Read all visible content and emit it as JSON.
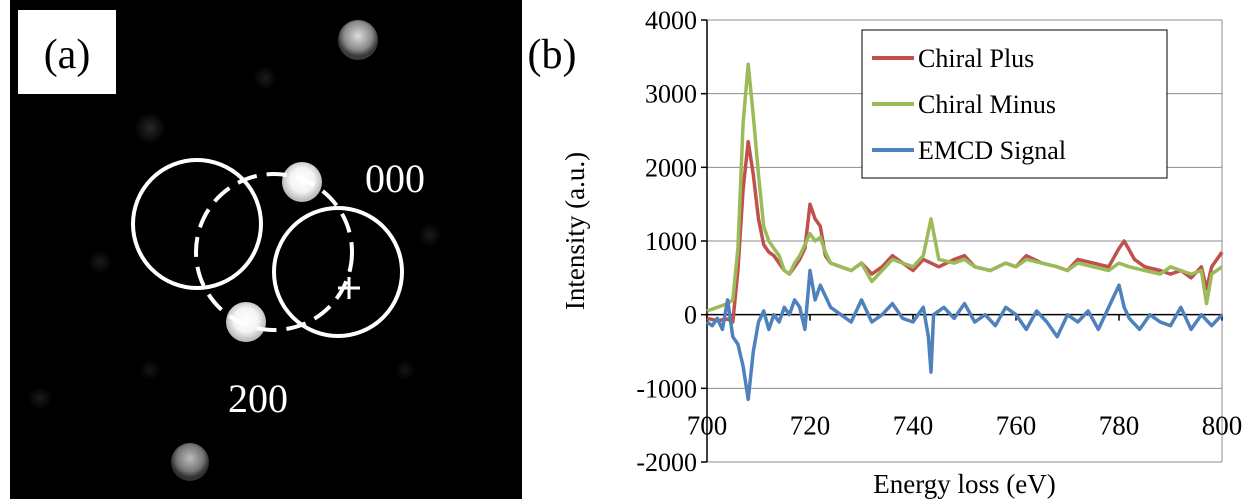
{
  "panel_a": {
    "panel_label": "(a)",
    "spot_labels": {
      "transmitted": "000",
      "diffracted": "200"
    }
  },
  "panel_b": {
    "panel_label": "(b)"
  },
  "chart_data": {
    "type": "line",
    "title": "",
    "xlabel": "Energy loss (eV)",
    "ylabel": "Intensity (a.u.)",
    "xlim": [
      700,
      800
    ],
    "ylim": [
      -2000,
      4000
    ],
    "x_ticks": [
      700,
      720,
      740,
      760,
      780,
      800
    ],
    "y_ticks": [
      -2000,
      -1000,
      0,
      1000,
      2000,
      3000,
      4000
    ],
    "grid": "horizontal",
    "legend": "top-right",
    "series": [
      {
        "name": "Chiral Plus",
        "color": "#c0504d",
        "x": [
          700,
          702,
          704,
          705,
          706,
          707,
          708,
          709,
          710,
          711,
          712,
          713,
          714,
          715,
          716,
          717,
          718,
          719,
          720,
          721,
          722,
          723,
          724,
          726,
          728,
          730,
          732,
          734,
          736,
          738,
          740,
          742,
          743.5,
          745,
          748,
          750,
          752,
          755,
          758,
          760,
          762,
          765,
          768,
          770,
          772,
          775,
          778,
          780,
          781,
          783,
          785,
          788,
          790,
          792,
          794,
          796,
          797,
          798,
          800
        ],
        "y": [
          -50,
          -80,
          -60,
          -100,
          600,
          1700,
          2350,
          1900,
          1300,
          950,
          850,
          800,
          700,
          600,
          550,
          650,
          750,
          900,
          1500,
          1300,
          1200,
          800,
          700,
          650,
          600,
          700,
          550,
          650,
          800,
          700,
          600,
          750,
          700,
          650,
          750,
          800,
          650,
          600,
          700,
          650,
          800,
          700,
          650,
          600,
          750,
          700,
          650,
          900,
          1000,
          750,
          650,
          600,
          550,
          600,
          500,
          650,
          350,
          650,
          850
        ]
      },
      {
        "name": "Chiral Minus",
        "color": "#9bbb59",
        "x": [
          700,
          702,
          704,
          705,
          706,
          707,
          708,
          709,
          710,
          711,
          712,
          713,
          714,
          715,
          716,
          717,
          718,
          719,
          720,
          721,
          722,
          723,
          724,
          726,
          728,
          730,
          732,
          734,
          736,
          738,
          740,
          742,
          743.5,
          745,
          748,
          750,
          752,
          755,
          758,
          760,
          762,
          765,
          768,
          770,
          772,
          775,
          778,
          780,
          782,
          785,
          788,
          790,
          792,
          794,
          796,
          797,
          798,
          800
        ],
        "y": [
          50,
          100,
          150,
          200,
          900,
          2600,
          3400,
          2700,
          1900,
          1200,
          1000,
          900,
          800,
          600,
          550,
          700,
          800,
          950,
          1100,
          1000,
          1050,
          850,
          700,
          650,
          600,
          700,
          450,
          600,
          750,
          700,
          650,
          800,
          1300,
          750,
          700,
          750,
          650,
          600,
          700,
          650,
          750,
          700,
          650,
          600,
          700,
          650,
          600,
          700,
          650,
          600,
          550,
          650,
          600,
          550,
          600,
          150,
          550,
          650
        ]
      },
      {
        "name": "EMCD Signal",
        "color": "#4f81bd",
        "x": [
          700,
          701,
          702,
          703,
          704,
          705,
          706,
          707,
          708,
          709,
          710,
          711,
          712,
          713,
          714,
          715,
          716,
          717,
          718,
          719,
          720,
          721,
          722,
          724,
          726,
          728,
          730,
          732,
          734,
          736,
          738,
          740,
          742,
          743,
          743.5,
          744,
          746,
          748,
          750,
          752,
          754,
          756,
          758,
          760,
          762,
          764,
          766,
          768,
          770,
          772,
          774,
          776,
          778,
          780,
          781,
          782,
          784,
          786,
          788,
          790,
          792,
          794,
          796,
          798,
          800
        ],
        "y": [
          -100,
          -150,
          -50,
          -200,
          200,
          -300,
          -400,
          -700,
          -1150,
          -500,
          -100,
          50,
          -200,
          0,
          -100,
          100,
          0,
          200,
          100,
          -200,
          600,
          200,
          400,
          100,
          0,
          -100,
          200,
          -100,
          0,
          150,
          -50,
          -100,
          100,
          -300,
          -780,
          0,
          100,
          -50,
          150,
          -100,
          0,
          -150,
          100,
          0,
          -200,
          50,
          -100,
          -300,
          0,
          -100,
          50,
          -200,
          100,
          400,
          100,
          -50,
          -200,
          0,
          -100,
          -150,
          100,
          -200,
          0,
          -150,
          0
        ]
      }
    ]
  }
}
